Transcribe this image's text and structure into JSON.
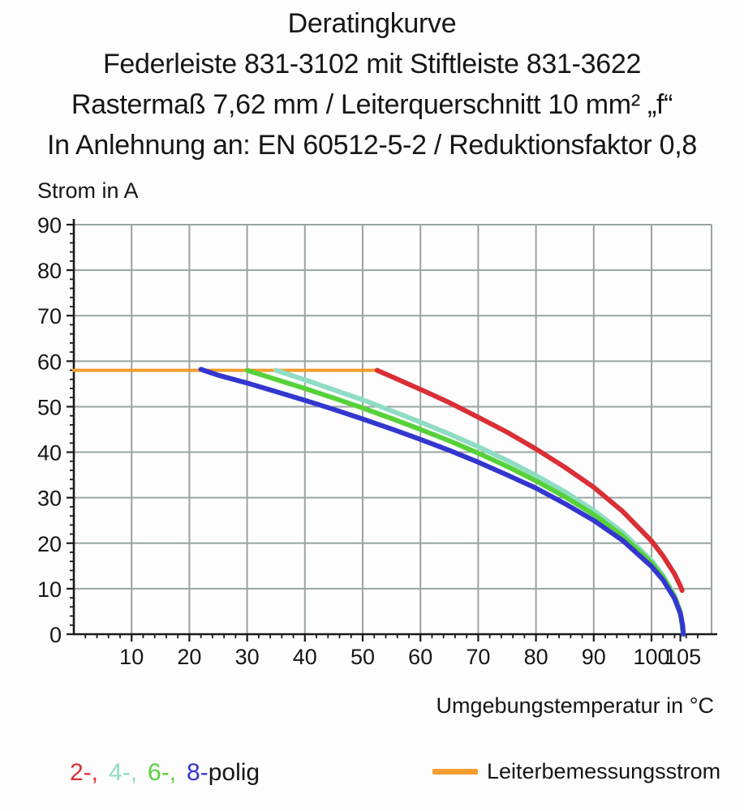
{
  "title": {
    "line1": "Deratingkurve",
    "line2": "Federleiste 831-3102 mit Stiftleiste 831-3622",
    "line3": "Rastermaß 7,62 mm / Leiterquerschnitt 10 mm² „f“",
    "line4": "In Anlehnung an: EN 60512-5-2 / Reduktionsfaktor 0,8"
  },
  "colors": {
    "red": "#d92f35",
    "cyan": "#8fdcc4",
    "green": "#56d139",
    "blue": "#3336cf",
    "orange": "#f59d2e",
    "grid": "#9aa3a3",
    "axis": "#1a1a1a",
    "text": "#161616"
  },
  "legend": {
    "poles": [
      {
        "label": "2-,",
        "color": "#d92f35"
      },
      {
        "label": "4-,",
        "color": "#8fdcc4"
      },
      {
        "label": "6-,",
        "color": "#56d139"
      },
      {
        "label": "8-",
        "color": "#3336cf"
      }
    ],
    "suffix": "polig",
    "rated": {
      "label": "Leiterbemessungsstrom",
      "color": "#f59d2e"
    }
  },
  "chart_data": {
    "type": "line",
    "title": "Deratingkurve",
    "xlabel": "Umgebungstemperatur in °C",
    "ylabel": "Strom in A",
    "xlim": [
      0,
      110.4
    ],
    "ylim": [
      0,
      90
    ],
    "grid": true,
    "legend_position": "bottom",
    "x_gridlines": [
      10,
      20,
      30,
      40,
      50,
      60,
      70,
      80,
      90,
      100
    ],
    "y_gridlines": [
      10,
      20,
      30,
      40,
      50,
      60,
      70,
      80,
      90
    ],
    "x_tick_labels": [
      10,
      20,
      30,
      40,
      50,
      60,
      70,
      80,
      90,
      100,
      105
    ],
    "y_tick_labels": [
      0,
      10,
      20,
      30,
      40,
      50,
      60,
      70,
      80,
      90
    ],
    "x_minor_step": 2,
    "y_minor_step": 2,
    "rated_current_A": 58,
    "series": [
      {
        "name": "Leiterbemessungsstrom",
        "color": "#f59d2e",
        "width": 4,
        "points": [
          [
            0,
            58
          ],
          [
            52.5,
            58
          ]
        ]
      },
      {
        "name": "4-polig",
        "color": "#8fdcc4",
        "width": 6,
        "points": [
          [
            35,
            58
          ],
          [
            40,
            55.9
          ],
          [
            45,
            53.7
          ],
          [
            50,
            51.5
          ],
          [
            55,
            49.1
          ],
          [
            60,
            46.6
          ],
          [
            65,
            44
          ],
          [
            70,
            41.2
          ],
          [
            75,
            38.2
          ],
          [
            80,
            34.9
          ],
          [
            85,
            31.3
          ],
          [
            90,
            27.2
          ],
          [
            95,
            22.4
          ],
          [
            100,
            16.2
          ],
          [
            102,
            12.9
          ],
          [
            104,
            8.5
          ],
          [
            105,
            4.9
          ],
          [
            105.5,
            0
          ]
        ]
      },
      {
        "name": "6-polig",
        "color": "#56d139",
        "width": 6,
        "points": [
          [
            30,
            58
          ],
          [
            35,
            56
          ],
          [
            40,
            54
          ],
          [
            45,
            51.9
          ],
          [
            50,
            49.7
          ],
          [
            55,
            47.4
          ],
          [
            60,
            45
          ],
          [
            65,
            42.5
          ],
          [
            70,
            39.8
          ],
          [
            75,
            36.9
          ],
          [
            80,
            33.7
          ],
          [
            85,
            30.2
          ],
          [
            90,
            26.3
          ],
          [
            95,
            21.6
          ],
          [
            100,
            15.7
          ],
          [
            102,
            12.5
          ],
          [
            104,
            8.2
          ],
          [
            105,
            4.7
          ],
          [
            105.5,
            0
          ]
        ]
      },
      {
        "name": "2-polig",
        "color": "#d92f35",
        "width": 6,
        "points": [
          [
            52.5,
            58
          ],
          [
            55,
            56.6
          ],
          [
            60,
            53.8
          ],
          [
            65,
            50.9
          ],
          [
            70,
            47.7
          ],
          [
            75,
            44.4
          ],
          [
            80,
            40.7
          ],
          [
            85,
            36.7
          ],
          [
            90,
            32.3
          ],
          [
            95,
            27
          ],
          [
            100,
            20.5
          ],
          [
            102,
            17.2
          ],
          [
            104,
            13.2
          ],
          [
            105,
            10.6
          ],
          [
            105.3,
            9.6
          ]
        ]
      },
      {
        "name": "8-polig",
        "color": "#3336cf",
        "width": 6,
        "points": [
          [
            22,
            58.2
          ],
          [
            25,
            56.9
          ],
          [
            30,
            55.2
          ],
          [
            35,
            53.3
          ],
          [
            40,
            51.4
          ],
          [
            45,
            49.4
          ],
          [
            50,
            47.3
          ],
          [
            55,
            45.1
          ],
          [
            60,
            42.8
          ],
          [
            65,
            40.4
          ],
          [
            70,
            37.8
          ],
          [
            75,
            35
          ],
          [
            80,
            32.1
          ],
          [
            85,
            28.7
          ],
          [
            90,
            25
          ],
          [
            95,
            20.6
          ],
          [
            100,
            14.9
          ],
          [
            102,
            11.9
          ],
          [
            104,
            7.8
          ],
          [
            105,
            4.5
          ],
          [
            105.4,
            2
          ],
          [
            105.5,
            0
          ]
        ]
      }
    ]
  }
}
